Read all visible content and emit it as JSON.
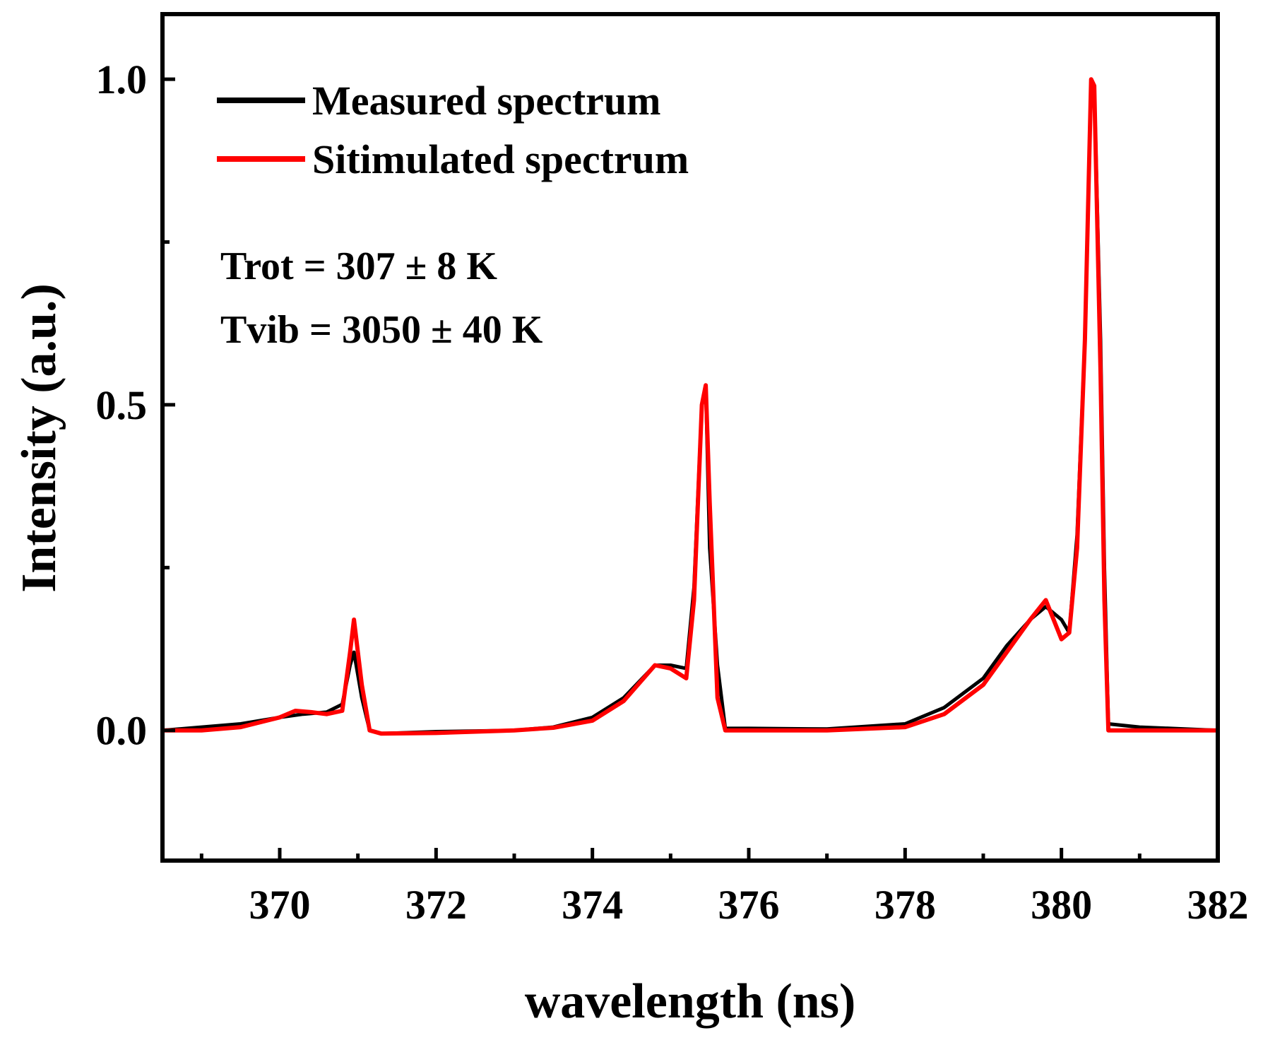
{
  "chart_data": {
    "type": "line",
    "title": "",
    "xlabel": "wavelength (ns)",
    "ylabel": "Intensity (a.u.)",
    "xlim": [
      368.5,
      382
    ],
    "ylim": [
      -0.2,
      1.1
    ],
    "x_ticks": [
      370,
      372,
      374,
      376,
      378,
      380,
      382
    ],
    "x_tick_labels": [
      "370",
      "372",
      "374",
      "376",
      "378",
      "380",
      "382"
    ],
    "y_ticks": [
      0.0,
      0.5,
      1.0
    ],
    "y_tick_labels": [
      "0.0",
      "0.5",
      "1.0"
    ],
    "legend_position": "top-left",
    "annotations": [
      "Trot = 307 ± 8 K",
      "Tvib = 3050 ± 40 K"
    ],
    "series": [
      {
        "name": "Measured spectrum",
        "color": "#000000",
        "x": [
          368.5,
          369.0,
          369.5,
          370.0,
          370.3,
          370.6,
          370.8,
          370.9,
          370.95,
          371.05,
          371.15,
          371.3,
          372.0,
          373.0,
          373.5,
          374.0,
          374.4,
          374.8,
          375.0,
          375.2,
          375.3,
          375.4,
          375.45,
          375.5,
          375.6,
          375.7,
          376.0,
          377.0,
          378.0,
          378.5,
          379.0,
          379.3,
          379.6,
          379.8,
          380.0,
          380.1,
          380.2,
          380.3,
          380.38,
          380.42,
          380.5,
          380.55,
          380.6,
          381.0,
          382.0
        ],
        "values": [
          0.0,
          0.005,
          0.01,
          0.02,
          0.025,
          0.028,
          0.04,
          0.1,
          0.12,
          0.05,
          0.0,
          -0.005,
          -0.002,
          0.0,
          0.005,
          0.02,
          0.05,
          0.1,
          0.1,
          0.095,
          0.22,
          0.5,
          0.53,
          0.28,
          0.1,
          0.003,
          0.003,
          0.002,
          0.01,
          0.035,
          0.08,
          0.13,
          0.17,
          0.19,
          0.17,
          0.15,
          0.3,
          0.6,
          1.0,
          0.99,
          0.6,
          0.25,
          0.01,
          0.005,
          0.0
        ]
      },
      {
        "name": "Sitimulated spectrum",
        "color": "#ff0000",
        "x": [
          368.5,
          369.0,
          369.5,
          370.0,
          370.2,
          370.4,
          370.6,
          370.8,
          370.9,
          370.95,
          371.05,
          371.15,
          371.3,
          372.0,
          373.0,
          373.5,
          374.0,
          374.4,
          374.8,
          375.0,
          375.2,
          375.3,
          375.4,
          375.45,
          375.5,
          375.6,
          375.7,
          376.0,
          377.0,
          378.0,
          378.5,
          379.0,
          379.3,
          379.6,
          379.8,
          380.0,
          380.1,
          380.2,
          380.3,
          380.38,
          380.42,
          380.5,
          380.55,
          380.6,
          381.0,
          382.0
        ],
        "values": [
          0.0,
          0.0,
          0.005,
          0.02,
          0.03,
          0.028,
          0.025,
          0.03,
          0.12,
          0.17,
          0.07,
          0.0,
          -0.005,
          -0.004,
          0.0,
          0.004,
          0.015,
          0.045,
          0.1,
          0.095,
          0.08,
          0.2,
          0.5,
          0.53,
          0.35,
          0.05,
          0.0,
          0.0,
          0.0,
          0.005,
          0.025,
          0.07,
          0.12,
          0.17,
          0.2,
          0.14,
          0.15,
          0.28,
          0.6,
          1.0,
          0.99,
          0.55,
          0.2,
          0.0,
          0.0,
          0.0
        ]
      }
    ]
  }
}
